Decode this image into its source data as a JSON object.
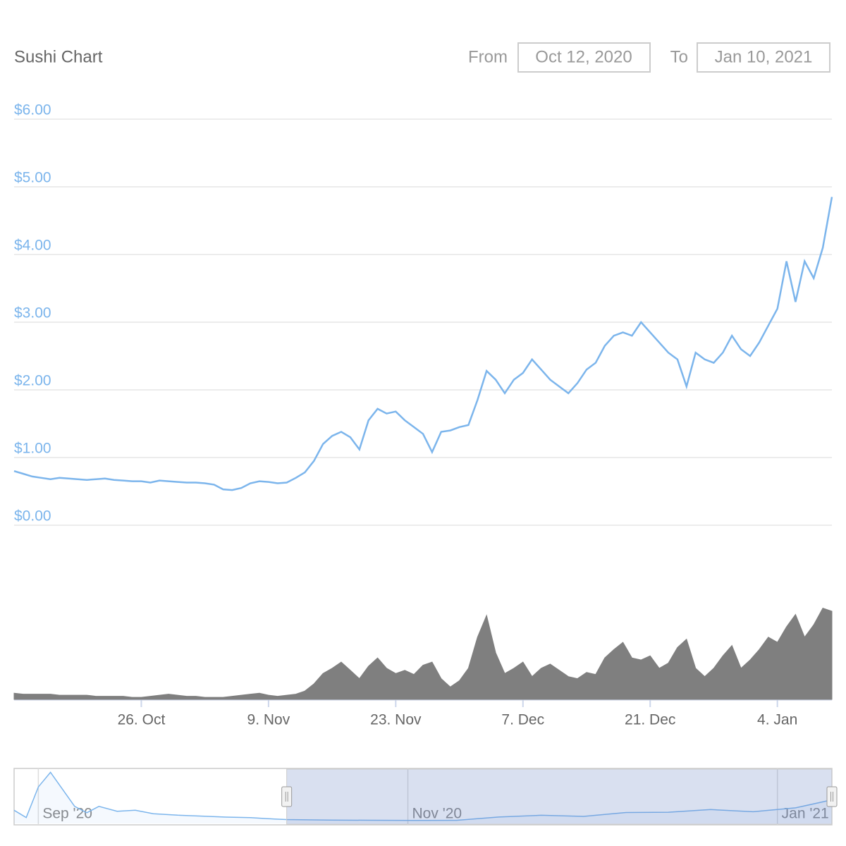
{
  "header": {
    "title": "Sushi Chart",
    "from_label": "From",
    "from": "Oct 12, 2020",
    "to_label": "To",
    "to": "Jan 10, 2021"
  },
  "chart_data": [
    {
      "type": "line",
      "x": [
        "2020-10-12",
        "2020-10-13",
        "2020-10-14",
        "2020-10-15",
        "2020-10-16",
        "2020-10-17",
        "2020-10-18",
        "2020-10-19",
        "2020-10-20",
        "2020-10-21",
        "2020-10-22",
        "2020-10-23",
        "2020-10-24",
        "2020-10-25",
        "2020-10-26",
        "2020-10-27",
        "2020-10-28",
        "2020-10-29",
        "2020-10-30",
        "2020-10-31",
        "2020-11-01",
        "2020-11-02",
        "2020-11-03",
        "2020-11-04",
        "2020-11-05",
        "2020-11-06",
        "2020-11-07",
        "2020-11-08",
        "2020-11-09",
        "2020-11-10",
        "2020-11-11",
        "2020-11-12",
        "2020-11-13",
        "2020-11-14",
        "2020-11-15",
        "2020-11-16",
        "2020-11-17",
        "2020-11-18",
        "2020-11-19",
        "2020-11-20",
        "2020-11-21",
        "2020-11-22",
        "2020-11-23",
        "2020-11-24",
        "2020-11-25",
        "2020-11-26",
        "2020-11-27",
        "2020-11-28",
        "2020-11-29",
        "2020-11-30",
        "2020-12-01",
        "2020-12-02",
        "2020-12-03",
        "2020-12-04",
        "2020-12-05",
        "2020-12-06",
        "2020-12-07",
        "2020-12-08",
        "2020-12-09",
        "2020-12-10",
        "2020-12-11",
        "2020-12-12",
        "2020-12-13",
        "2020-12-14",
        "2020-12-15",
        "2020-12-16",
        "2020-12-17",
        "2020-12-18",
        "2020-12-19",
        "2020-12-20",
        "2020-12-21",
        "2020-12-22",
        "2020-12-23",
        "2020-12-24",
        "2020-12-25",
        "2020-12-26",
        "2020-12-27",
        "2020-12-28",
        "2020-12-29",
        "2020-12-30",
        "2020-12-31",
        "2021-01-01",
        "2021-01-02",
        "2021-01-03",
        "2021-01-04",
        "2021-01-05",
        "2021-01-06",
        "2021-01-07",
        "2021-01-08",
        "2021-01-09",
        "2021-01-10"
      ],
      "series": [
        {
          "color": "#7cb5ec",
          "values": [
            0.8,
            0.76,
            0.72,
            0.7,
            0.68,
            0.7,
            0.69,
            0.68,
            0.67,
            0.68,
            0.69,
            0.67,
            0.66,
            0.65,
            0.65,
            0.63,
            0.66,
            0.65,
            0.64,
            0.63,
            0.63,
            0.62,
            0.6,
            0.53,
            0.52,
            0.55,
            0.62,
            0.65,
            0.64,
            0.62,
            0.63,
            0.7,
            0.78,
            0.95,
            1.2,
            1.32,
            1.38,
            1.3,
            1.12,
            1.55,
            1.72,
            1.65,
            1.68,
            1.55,
            1.45,
            1.35,
            1.08,
            1.38,
            1.4,
            1.45,
            1.48,
            1.85,
            2.28,
            2.15,
            1.95,
            2.15,
            2.25,
            2.45,
            2.3,
            2.15,
            2.05,
            1.95,
            2.1,
            2.3,
            2.4,
            2.65,
            2.8,
            2.85,
            2.8,
            3.0,
            2.85,
            2.7,
            2.55,
            2.45,
            2.05,
            2.55,
            2.45,
            2.4,
            2.55,
            2.8,
            2.6,
            2.5,
            2.7,
            2.95,
            3.2,
            3.9,
            3.3,
            3.9,
            3.65,
            4.1,
            4.85
          ]
        },
        {
          "color": "#7f7f7f",
          "axis": "y2",
          "values": [
            6,
            5,
            5,
            5,
            5,
            4,
            4,
            4,
            4,
            3,
            3,
            3,
            3,
            2,
            2,
            3,
            4,
            5,
            4,
            3,
            3,
            2,
            2,
            2,
            3,
            4,
            5,
            6,
            4,
            3,
            4,
            5,
            8,
            15,
            25,
            30,
            36,
            28,
            20,
            32,
            40,
            30,
            25,
            28,
            24,
            33,
            36,
            20,
            12,
            18,
            30,
            60,
            81,
            45,
            25,
            30,
            36,
            22,
            30,
            34,
            28,
            22,
            20,
            26,
            24,
            40,
            48,
            55,
            40,
            38,
            42,
            30,
            35,
            50,
            58,
            30,
            22,
            30,
            42,
            52,
            30,
            38,
            48,
            60,
            55,
            70,
            82,
            60,
            72,
            88,
            85
          ]
        }
      ],
      "xlim": [
        "2020-10-12",
        "2021-01-10"
      ],
      "xticks": [
        {
          "value": "2020-10-26",
          "label": "26. Oct"
        },
        {
          "value": "2020-11-09",
          "label": "9. Nov"
        },
        {
          "value": "2020-11-23",
          "label": "23. Nov"
        },
        {
          "value": "2020-12-07",
          "label": "7. Dec"
        },
        {
          "value": "2020-12-21",
          "label": "21. Dec"
        },
        {
          "value": "2021-01-04",
          "label": "4. Jan"
        }
      ],
      "ylim": [
        0,
        6
      ],
      "yticks": [
        {
          "value": 0,
          "label": "$0.00"
        },
        {
          "value": 1,
          "label": "$1.00"
        },
        {
          "value": 2,
          "label": "$2.00"
        },
        {
          "value": 3,
          "label": "$3.00"
        },
        {
          "value": 4,
          "label": "$4.00"
        },
        {
          "value": 5,
          "label": "$5.00"
        },
        {
          "value": 6,
          "label": "$6.00"
        }
      ],
      "y2lim": [
        0,
        100
      ],
      "grid": true
    },
    {
      "type": "area",
      "x": [
        "2020-08-28",
        "2020-08-30",
        "2020-09-01",
        "2020-09-03",
        "2020-09-05",
        "2020-09-07",
        "2020-09-09",
        "2020-09-11",
        "2020-09-14",
        "2020-09-17",
        "2020-09-20",
        "2020-09-24",
        "2020-09-28",
        "2020-10-02",
        "2020-10-06",
        "2020-10-10",
        "2020-10-12",
        "2020-10-19",
        "2020-10-26",
        "2020-11-02",
        "2020-11-09",
        "2020-11-16",
        "2020-11-23",
        "2020-11-30",
        "2020-12-07",
        "2020-12-14",
        "2020-12-21",
        "2020-12-28",
        "2021-01-04",
        "2021-01-10"
      ],
      "values": [
        2.7,
        1.2,
        7.5,
        10.5,
        7,
        3.5,
        2.2,
        3.5,
        2.5,
        2.7,
        2.0,
        1.7,
        1.5,
        1.3,
        1.2,
        0.9,
        0.8,
        0.68,
        0.65,
        0.62,
        0.64,
        1.32,
        1.68,
        1.45,
        2.25,
        2.3,
        2.85,
        2.4,
        3.2,
        4.85
      ],
      "color": "#7cb5ec",
      "xlim": [
        "2020-08-28",
        "2021-01-10"
      ],
      "ylim": [
        0,
        11
      ],
      "xticks": [
        {
          "value": "2020-09-01",
          "label": "Sep '20"
        },
        {
          "value": "2020-11-01",
          "label": "Nov '20"
        },
        {
          "value": "2021-01-01",
          "label": "Jan '21"
        }
      ]
    }
  ]
}
